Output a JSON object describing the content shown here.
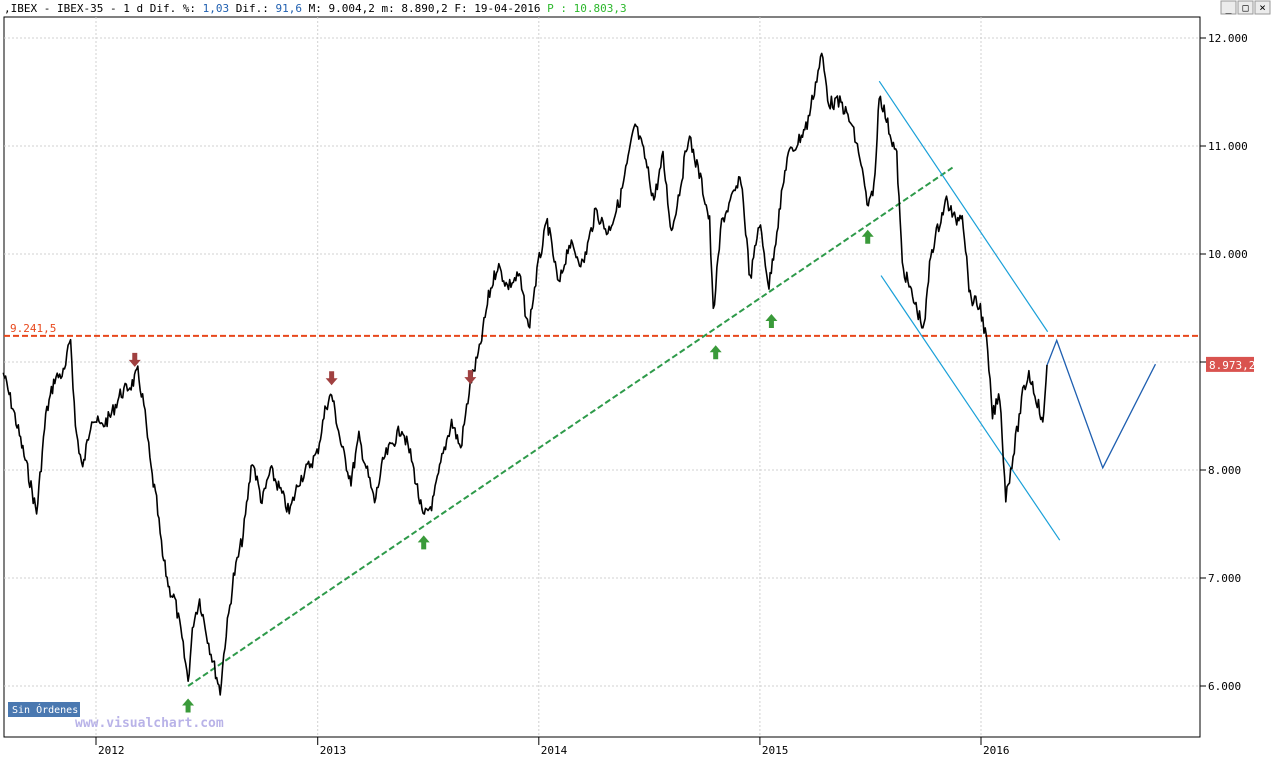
{
  "header": {
    "prefix": ",IBEX - IBEX-35 -  1 d Dif.",
    "pct_label": " %:",
    "pct_value": " 1,03",
    "dif_label": " Dif.:",
    "dif_value": " 91,6",
    "max_label": " M:",
    "max_value": " 9.004,2",
    "min_label": " m:",
    "min_value": " 8.890,2",
    "date_label": " F:",
    "date_value": " 19-04-2016",
    "p_label": " P",
    "p_value": " : 10.803,3"
  },
  "colors": {
    "price": "#000000",
    "support": "#2e9a4a",
    "resistance": "#e8481c",
    "channel": "#1aa0d8",
    "projection": "#1f5fb0",
    "arrow_up": "#3a9a3a",
    "arrow_down": "#a04040",
    "last_price_bg": "#d9534f",
    "grid": "#d0d0d0",
    "axis_bg": "#ffffff"
  },
  "window_controls": {
    "minimize": "_",
    "restore": "□",
    "close": "×"
  },
  "level_label": "9.241,5",
  "last_price_label": "8.973,2",
  "orders_button": "Sin Órdenes",
  "watermark": "www.visualchart.com",
  "chart_data": {
    "type": "line",
    "symbol": "IBEX-35",
    "period": "1 d",
    "title": "",
    "xlabel": "",
    "ylabel": "",
    "ylim": [
      5400,
      12350
    ],
    "xlim": [
      "2011-08-01",
      "2016-12-16"
    ],
    "x_ticks": [
      "2012",
      "2013",
      "2014",
      "2015",
      "2016"
    ],
    "y_ticks": [
      "6.000",
      "7.000",
      "8.000",
      "9.000",
      "10.000",
      "11.000",
      "12.000"
    ],
    "series": [
      {
        "type": "line",
        "points": [
          [
            "2011-08-01",
            8900
          ],
          [
            "2011-08-20",
            8500
          ],
          [
            "2011-09-10",
            8000
          ],
          [
            "2011-09-25",
            7600
          ],
          [
            "2011-10-10",
            8500
          ],
          [
            "2011-10-25",
            8850
          ],
          [
            "2011-11-10",
            8900
          ],
          [
            "2011-11-20",
            9230
          ],
          [
            "2011-11-28",
            8400
          ],
          [
            "2011-12-10",
            8000
          ],
          [
            "2011-12-25",
            8500
          ],
          [
            "2012-01-10",
            8400
          ],
          [
            "2012-01-25",
            8500
          ],
          [
            "2012-02-10",
            8700
          ],
          [
            "2012-03-01",
            8800
          ],
          [
            "2012-03-10",
            8900
          ],
          [
            "2012-03-20",
            8600
          ],
          [
            "2012-04-01",
            8000
          ],
          [
            "2012-04-10",
            7700
          ],
          [
            "2012-04-20",
            7200
          ],
          [
            "2012-05-01",
            6900
          ],
          [
            "2012-05-10",
            6800
          ],
          [
            "2012-05-20",
            6500
          ],
          [
            "2012-06-01",
            6050
          ],
          [
            "2012-06-10",
            6600
          ],
          [
            "2012-06-20",
            6800
          ],
          [
            "2012-07-05",
            6400
          ],
          [
            "2012-07-24",
            5950
          ],
          [
            "2012-08-01",
            6400
          ],
          [
            "2012-08-15",
            7000
          ],
          [
            "2012-08-31",
            7400
          ],
          [
            "2012-09-15",
            8100
          ],
          [
            "2012-10-01",
            7700
          ],
          [
            "2012-10-15",
            8000
          ],
          [
            "2012-11-01",
            7800
          ],
          [
            "2012-11-15",
            7600
          ],
          [
            "2012-12-01",
            7900
          ],
          [
            "2012-12-31",
            8150
          ],
          [
            "2013-01-15",
            8600
          ],
          [
            "2013-01-24",
            8700
          ],
          [
            "2013-02-10",
            8200
          ],
          [
            "2013-02-25",
            7900
          ],
          [
            "2013-03-10",
            8300
          ],
          [
            "2013-04-05",
            7700
          ],
          [
            "2013-04-20",
            8100
          ],
          [
            "2013-05-20",
            8400
          ],
          [
            "2013-06-05",
            8100
          ],
          [
            "2013-06-24",
            7550
          ],
          [
            "2013-07-10",
            7700
          ],
          [
            "2013-07-25",
            8100
          ],
          [
            "2013-08-10",
            8450
          ],
          [
            "2013-08-25",
            8200
          ],
          [
            "2013-09-10",
            8800
          ],
          [
            "2013-09-25",
            9100
          ],
          [
            "2013-10-10",
            9600
          ],
          [
            "2013-10-25",
            9900
          ],
          [
            "2013-11-10",
            9700
          ],
          [
            "2013-11-30",
            9800
          ],
          [
            "2013-12-15",
            9300
          ],
          [
            "2013-12-31",
            9900
          ],
          [
            "2014-01-15",
            10300
          ],
          [
            "2014-02-03",
            9700
          ],
          [
            "2014-02-20",
            10100
          ],
          [
            "2014-03-15",
            9900
          ],
          [
            "2014-04-05",
            10400
          ],
          [
            "2014-04-25",
            10200
          ],
          [
            "2014-05-15",
            10500
          ],
          [
            "2014-06-09",
            11200
          ],
          [
            "2014-06-25",
            10900
          ],
          [
            "2014-07-10",
            10500
          ],
          [
            "2014-07-25",
            10900
          ],
          [
            "2014-08-08",
            10200
          ],
          [
            "2014-08-25",
            10700
          ],
          [
            "2014-09-05",
            11100
          ],
          [
            "2014-09-25",
            10700
          ],
          [
            "2014-10-10",
            10300
          ],
          [
            "2014-10-16",
            9450
          ],
          [
            "2014-10-30",
            10300
          ],
          [
            "2014-11-15",
            10500
          ],
          [
            "2014-12-01",
            10700
          ],
          [
            "2014-12-16",
            9750
          ],
          [
            "2014-12-31",
            10300
          ],
          [
            "2015-01-16",
            9700
          ],
          [
            "2015-01-31",
            10300
          ],
          [
            "2015-02-15",
            10900
          ],
          [
            "2015-03-01",
            11000
          ],
          [
            "2015-03-20",
            11200
          ],
          [
            "2015-04-13",
            11850
          ],
          [
            "2015-04-25",
            11400
          ],
          [
            "2015-05-15",
            11400
          ],
          [
            "2015-06-01",
            11200
          ],
          [
            "2015-06-15",
            10900
          ],
          [
            "2015-06-29",
            10400
          ],
          [
            "2015-07-10",
            10700
          ],
          [
            "2015-07-17",
            11500
          ],
          [
            "2015-07-31",
            11200
          ],
          [
            "2015-08-15",
            10900
          ],
          [
            "2015-08-24",
            9900
          ],
          [
            "2015-09-10",
            9600
          ],
          [
            "2015-09-29",
            9300
          ],
          [
            "2015-10-10",
            10000
          ],
          [
            "2015-10-25",
            10300
          ],
          [
            "2015-11-05",
            10500
          ],
          [
            "2015-11-20",
            10300
          ],
          [
            "2015-12-01",
            10400
          ],
          [
            "2015-12-14",
            9600
          ],
          [
            "2015-12-31",
            9500
          ],
          [
            "2016-01-10",
            9200
          ],
          [
            "2016-01-20",
            8500
          ],
          [
            "2016-02-01",
            8700
          ],
          [
            "2016-02-11",
            7750
          ],
          [
            "2016-02-25",
            8200
          ],
          [
            "2016-03-10",
            8700
          ],
          [
            "2016-03-20",
            8900
          ],
          [
            "2016-04-05",
            8600
          ],
          [
            "2016-04-12",
            8400
          ],
          [
            "2016-04-19",
            8973
          ]
        ]
      }
    ],
    "horizontal_level": 9241.5,
    "last_price": 8973.2,
    "support_line": {
      "from": [
        "2012-06-01",
        6000
      ],
      "to": [
        "2015-11-15",
        10800
      ]
    },
    "channel_upper": {
      "from": [
        "2015-07-17",
        11600
      ],
      "to": [
        "2016-04-20",
        9280
      ]
    },
    "channel_lower": {
      "from": [
        "2015-07-20",
        9800
      ],
      "to": [
        "2016-05-10",
        7350
      ]
    },
    "projection": [
      [
        "2016-04-19",
        8970
      ],
      [
        "2016-05-05",
        9200
      ],
      [
        "2016-07-20",
        8020
      ],
      [
        "2016-10-15",
        8980
      ]
    ],
    "arrows_up": [
      [
        "2012-06-01",
        5820
      ],
      [
        "2013-06-25",
        7330
      ],
      [
        "2014-10-20",
        9090
      ],
      [
        "2015-01-20",
        9380
      ],
      [
        "2015-06-28",
        10160
      ]
    ],
    "arrows_down": [
      [
        "2012-03-05",
        9020
      ],
      [
        "2013-01-24",
        8850
      ],
      [
        "2013-09-10",
        8860
      ]
    ]
  }
}
